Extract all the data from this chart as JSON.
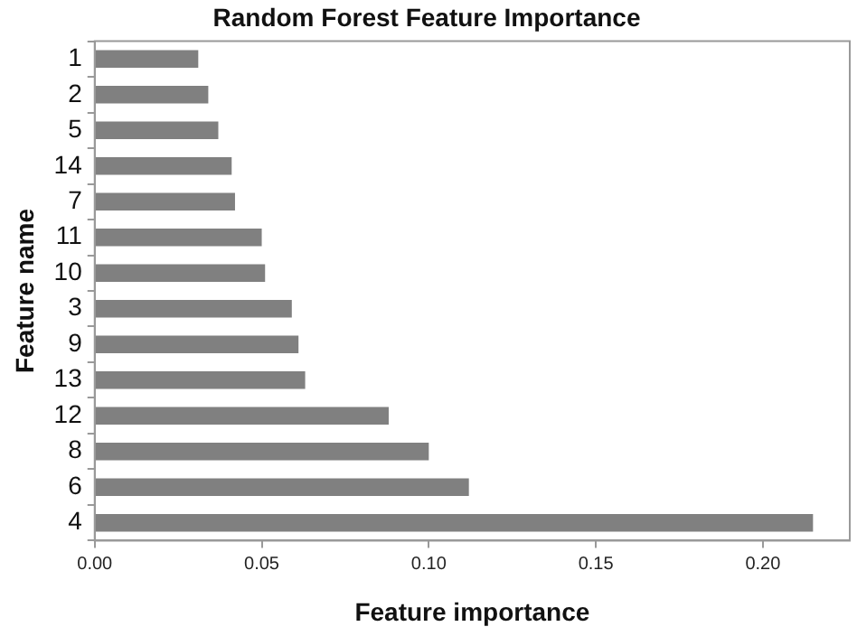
{
  "chart_data": {
    "type": "bar",
    "orientation": "horizontal",
    "title": "Random Forest Feature Importance",
    "xlabel": "Feature importance",
    "ylabel": "Feature name",
    "categories": [
      "1",
      "2",
      "5",
      "14",
      "7",
      "11",
      "10",
      "3",
      "9",
      "13",
      "12",
      "8",
      "6",
      "4"
    ],
    "values": [
      0.031,
      0.034,
      0.037,
      0.041,
      0.042,
      0.05,
      0.051,
      0.059,
      0.061,
      0.063,
      0.088,
      0.1,
      0.112,
      0.215
    ],
    "color": "#808080",
    "xlim": [
      0,
      0.226
    ],
    "xticks": [
      {
        "value": 0,
        "label": "0.00"
      },
      {
        "value": 0.05,
        "label": "0.05"
      },
      {
        "value": 0.1,
        "label": "0.10"
      },
      {
        "value": 0.15,
        "label": "0.15"
      },
      {
        "value": 0.2,
        "label": "0.20"
      }
    ],
    "grid": false,
    "legend": false
  }
}
